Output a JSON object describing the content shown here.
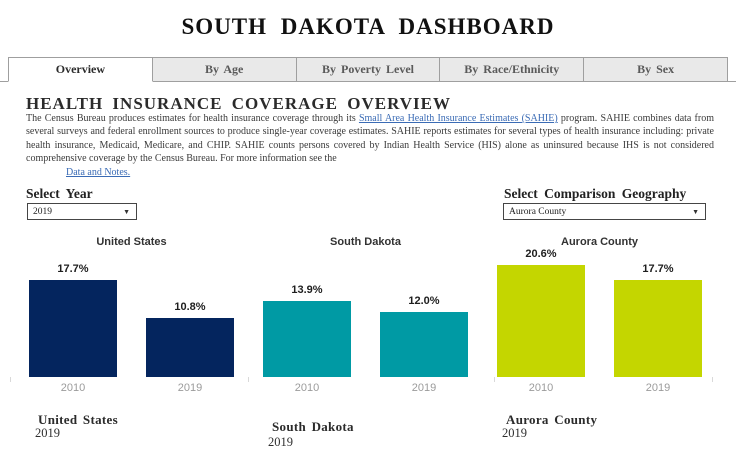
{
  "title": "SOUTH DAKOTA DASHBOARD",
  "tabs": [
    {
      "label": "Overview",
      "active": true
    },
    {
      "label": "By Age",
      "active": false
    },
    {
      "label": "By Poverty Level",
      "active": false
    },
    {
      "label": "By Race/Ethnicity",
      "active": false
    },
    {
      "label": "By Sex",
      "active": false
    }
  ],
  "section": {
    "heading": "HEALTH INSURANCE COVERAGE OVERVIEW",
    "paragraph": {
      "text_before_link": "The Census Bureau produces estimates for health insurance coverage through its ",
      "sahie_link": "Small Area Health Insurance Estimates (SAHIE)",
      "text_after_link": " program. SAHIE combines data from several surveys and federal enrollment sources to produce single-year coverage estimates. SAHIE reports estimates for several types of health insurance including: private health insurance, Medicaid, Medicare, and CHIP. SAHIE counts persons covered by Indian Health Service (HIS) alone as uninsured because IHS is not considered comprehensive coverage by the Census Bureau. For more information see the",
      "data_notes_link": "Data and Notes."
    }
  },
  "filters": {
    "year": {
      "label": "Select Year",
      "value": "2019"
    },
    "geography": {
      "label": "Select Comparison Geography",
      "value": "Aurora County"
    }
  },
  "chart_data": {
    "type": "bar",
    "unit": "percent uninsured",
    "categories": [
      "2010",
      "2019"
    ],
    "groups": [
      {
        "title": "United States",
        "color": "#04255e",
        "categories": [
          "2010",
          "2019"
        ],
        "values": [
          17.7,
          10.8
        ]
      },
      {
        "title": "South Dakota",
        "color": "#009aa4",
        "categories": [
          "2010",
          "2019"
        ],
        "values": [
          13.9,
          12.0
        ]
      },
      {
        "title": "Aurora County",
        "color": "#c4d600",
        "categories": [
          "2010",
          "2019"
        ],
        "values": [
          20.6,
          17.7
        ]
      }
    ],
    "value_labels": [
      "17.7%",
      "10.8%",
      "13.9%",
      "12.0%",
      "20.6%",
      "17.7%"
    ],
    "legend_position": "none",
    "grid": false
  },
  "captions": [
    {
      "title": "United States",
      "year": "2019"
    },
    {
      "title": "South Dakota",
      "year": "2019"
    },
    {
      "title": "Aurora County",
      "year": "2019"
    }
  ],
  "colors": {
    "link_blue": "#3a6bb5",
    "tab_inactive_bg": "#e9e9e9",
    "tab_border": "#9f9f9f",
    "axis_label_gray": "#9b9b9b"
  }
}
